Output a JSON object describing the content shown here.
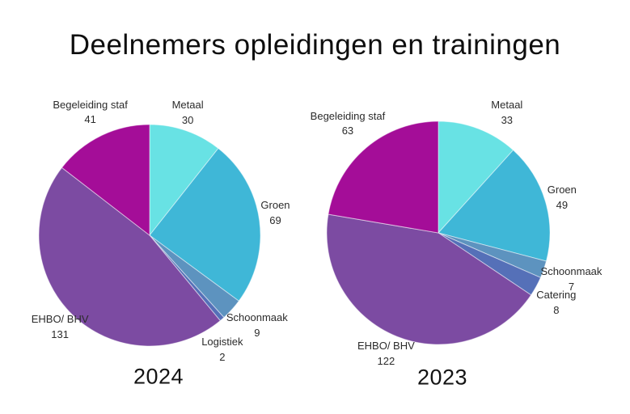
{
  "title": "Deelnemers opleidingen en trainingen",
  "chart_data": [
    {
      "type": "pie",
      "year_label": "2024",
      "categories": [
        "Metaal",
        "Groen",
        "Schoonmaak",
        "Logistiek",
        "EHBO/ BHV",
        "Begeleiding staf"
      ],
      "values": [
        30,
        69,
        9,
        2,
        131,
        41
      ],
      "colors": [
        "#68e2e4",
        "#3fb7d7",
        "#5d93bf",
        "#5570b8",
        "#7c4ba2",
        "#a40d98"
      ],
      "total": 282,
      "start_angle": "12 o'clock",
      "direction": "clockwise",
      "labels_position": "outside",
      "legend": "none"
    },
    {
      "type": "pie",
      "year_label": "2023",
      "categories": [
        "Metaal",
        "Groen",
        "Schoonmaak",
        "Catering",
        "EHBO/ BHV",
        "Begeleiding staf"
      ],
      "values": [
        33,
        49,
        7,
        8,
        122,
        63
      ],
      "colors": [
        "#68e2e4",
        "#3fb7d7",
        "#5d93bf",
        "#5570b8",
        "#7c4ba2",
        "#a40d98"
      ],
      "total": 282,
      "start_angle": "12 o'clock",
      "direction": "clockwise",
      "labels_position": "outside",
      "legend": "none"
    }
  ]
}
